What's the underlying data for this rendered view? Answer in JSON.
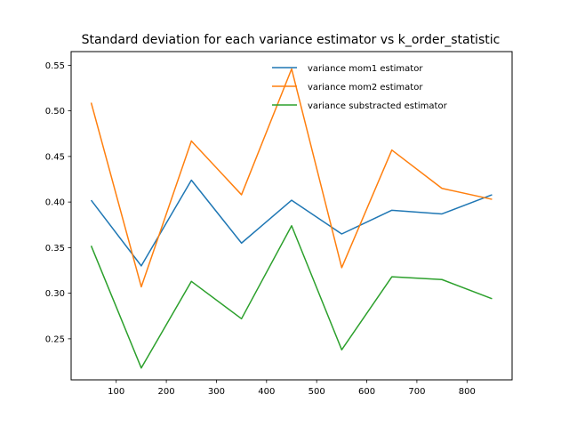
{
  "chart_data": {
    "type": "line",
    "title": "Standard deviation for each variance estimator vs k_order_statistic",
    "xlabel": "",
    "ylabel": "",
    "x": [
      50,
      150,
      250,
      350,
      450,
      550,
      650,
      750,
      850
    ],
    "xlim": [
      10,
      890
    ],
    "ylim": [
      0.205,
      0.565
    ],
    "xticks": [
      100,
      200,
      300,
      400,
      500,
      600,
      700,
      800
    ],
    "yticks": [
      0.25,
      0.3,
      0.35,
      0.4,
      0.45,
      0.5,
      0.55
    ],
    "ytick_labels": [
      "0.25",
      "0.30",
      "0.35",
      "0.40",
      "0.45",
      "0.50",
      "0.55"
    ],
    "grid": false,
    "legend_position": "top-right",
    "series": [
      {
        "name": "variance mom1 estimator",
        "color": "#1f77b4",
        "values": [
          0.402,
          0.33,
          0.424,
          0.355,
          0.402,
          0.365,
          0.391,
          0.387,
          0.408
        ]
      },
      {
        "name": "variance mom2 estimator",
        "color": "#ff7f0e",
        "values": [
          0.509,
          0.307,
          0.467,
          0.408,
          0.546,
          0.328,
          0.457,
          0.415,
          0.403
        ]
      },
      {
        "name": "variance substracted estimator",
        "color": "#2ca02c",
        "values": [
          0.352,
          0.218,
          0.313,
          0.272,
          0.374,
          0.238,
          0.318,
          0.315,
          0.294
        ]
      }
    ]
  }
}
